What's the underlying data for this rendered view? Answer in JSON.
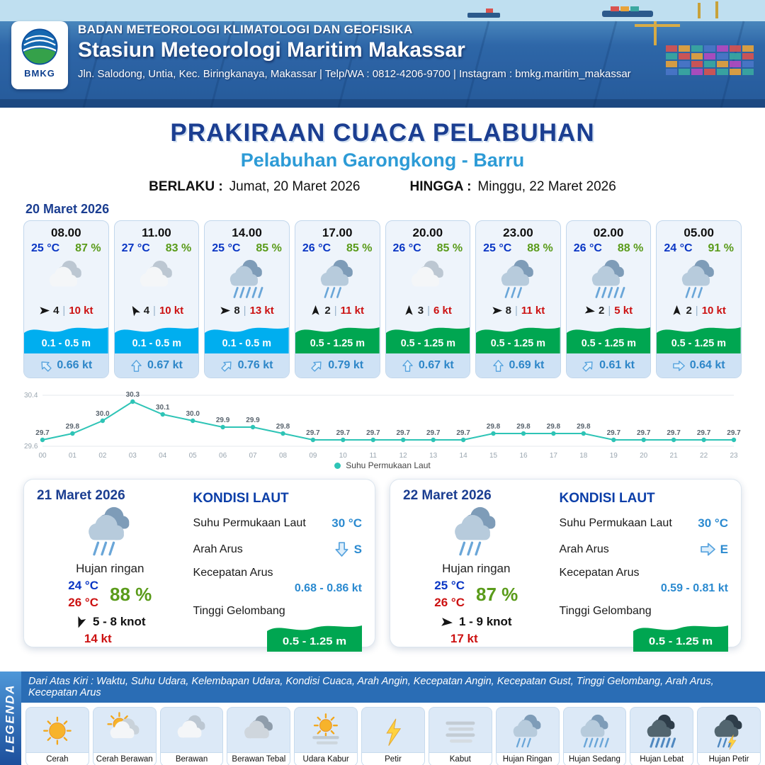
{
  "header": {
    "logo_text": "BMKG",
    "agency": "BADAN METEOROLOGI KLIMATOLOGI DAN GEOFISIKA",
    "station": "Stasiun Meteorologi Maritim Makassar",
    "address": "Jln. Salodong, Untia, Kec. Biringkanaya, Makassar | Telp/WA : 0812-4206-9700 | Instagram : bmkg.maritim_makassar"
  },
  "title": {
    "main": "PRAKIRAAN CUACA PELABUHAN",
    "subtitle": "Pelabuhan Garongkong - Barru",
    "valid_label": "BERLAKU :",
    "valid_value": "Jumat, 20 Maret 2026",
    "until_label": "HINGGA :",
    "until_value": "Minggu, 22 Maret 2026"
  },
  "hourly": {
    "date": "20 Maret 2026",
    "sep": "|",
    "cards": [
      {
        "time": "08.00",
        "temp": "25 °C",
        "rh": "87 %",
        "icon": "berawan",
        "wind_dir_deg": 90,
        "wind_speed": "4",
        "gust": "10 kt",
        "wave": "0.1 - 0.5 m",
        "wave_color": "#00aeef",
        "current_dir_deg": 315,
        "current_speed": "0.66 kt"
      },
      {
        "time": "11.00",
        "temp": "27 °C",
        "rh": "83 %",
        "icon": "berawan",
        "wind_dir_deg": 330,
        "wind_speed": "4",
        "gust": "10 kt",
        "wave": "0.1 - 0.5 m",
        "wave_color": "#00aeef",
        "current_dir_deg": 0,
        "current_speed": "0.67 kt"
      },
      {
        "time": "14.00",
        "temp": "25 °C",
        "rh": "85 %",
        "icon": "hujan-sedang",
        "wind_dir_deg": 90,
        "wind_speed": "8",
        "gust": "13 kt",
        "wave": "0.1 - 0.5 m",
        "wave_color": "#00aeef",
        "current_dir_deg": 45,
        "current_speed": "0.76 kt"
      },
      {
        "time": "17.00",
        "temp": "26 °C",
        "rh": "85 %",
        "icon": "hujan-ringan",
        "wind_dir_deg": 0,
        "wind_speed": "2",
        "gust": "11 kt",
        "wave": "0.5 - 1.25 m",
        "wave_color": "#00a651",
        "current_dir_deg": 45,
        "current_speed": "0.79 kt"
      },
      {
        "time": "20.00",
        "temp": "26 °C",
        "rh": "85 %",
        "icon": "berawan",
        "wind_dir_deg": 0,
        "wind_speed": "3",
        "gust": "6 kt",
        "wave": "0.5 - 1.25 m",
        "wave_color": "#00a651",
        "current_dir_deg": 0,
        "current_speed": "0.67 kt"
      },
      {
        "time": "23.00",
        "temp": "25 °C",
        "rh": "88 %",
        "icon": "hujan-ringan",
        "wind_dir_deg": 90,
        "wind_speed": "8",
        "gust": "11 kt",
        "wave": "0.5 - 1.25 m",
        "wave_color": "#00a651",
        "current_dir_deg": 0,
        "current_speed": "0.69 kt"
      },
      {
        "time": "02.00",
        "temp": "26 °C",
        "rh": "88 %",
        "icon": "hujan-sedang",
        "wind_dir_deg": 100,
        "wind_speed": "2",
        "gust": "5 kt",
        "wave": "0.5 - 1.25 m",
        "wave_color": "#00a651",
        "current_dir_deg": 45,
        "current_speed": "0.61 kt"
      },
      {
        "time": "05.00",
        "temp": "24 °C",
        "rh": "91 %",
        "icon": "hujan-ringan",
        "wind_dir_deg": 0,
        "wind_speed": "2",
        "gust": "10 kt",
        "wave": "0.5 - 1.25 m",
        "wave_color": "#00a651",
        "current_dir_deg": 90,
        "current_speed": "0.64 kt"
      }
    ]
  },
  "chart_data": {
    "type": "line",
    "legend": "Suhu Permukaan Laut",
    "x": [
      "00",
      "01",
      "02",
      "03",
      "04",
      "05",
      "06",
      "07",
      "08",
      "09",
      "10",
      "11",
      "12",
      "13",
      "14",
      "15",
      "16",
      "17",
      "18",
      "19",
      "20",
      "21",
      "22",
      "23"
    ],
    "values": [
      29.7,
      29.8,
      30.0,
      30.3,
      30.1,
      30.0,
      29.9,
      29.9,
      29.8,
      29.7,
      29.7,
      29.7,
      29.7,
      29.7,
      29.7,
      29.8,
      29.8,
      29.8,
      29.8,
      29.7,
      29.7,
      29.7,
      29.7,
      29.7
    ],
    "ylim": [
      29.6,
      30.4
    ],
    "yticks": [
      29.6,
      30.4
    ],
    "line_color": "#2ec4b6",
    "grid": true,
    "legend_position": "bottom"
  },
  "daily": {
    "cards": [
      {
        "date": "21 Maret 2026",
        "icon": "hujan-ringan",
        "condition": "Hujan ringan",
        "temp_min": "24 °C",
        "temp_max": "26 °C",
        "rh": "88 %",
        "wind_dir_deg": 200,
        "wind": "5 - 8 knot",
        "gust": "14 kt",
        "sea": {
          "heading": "KONDISI LAUT",
          "sst_label": "Suhu Permukaan Laut",
          "sst": "30 °C",
          "current_dir_label": "Arah Arus",
          "current_dir": "S",
          "current_dir_deg": 180,
          "current_speed_label": "Kecepatan Arus",
          "current_speed": "0.68 - 0.86 kt",
          "wave_label": "Tinggi Gelombang",
          "wave": "0.5 - 1.25 m",
          "wave_color": "#00a651"
        }
      },
      {
        "date": "22 Maret 2026",
        "icon": "hujan-ringan",
        "condition": "Hujan ringan",
        "temp_min": "25 °C",
        "temp_max": "26 °C",
        "rh": "87 %",
        "wind_dir_deg": 95,
        "wind": "1 - 9 knot",
        "gust": "17 kt",
        "sea": {
          "heading": "KONDISI LAUT",
          "sst_label": "Suhu Permukaan Laut",
          "sst": "30 °C",
          "current_dir_label": "Arah Arus",
          "current_dir": "E",
          "current_dir_deg": 90,
          "current_speed_label": "Kecepatan Arus",
          "current_speed": "0.59 - 0.81 kt",
          "wave_label": "Tinggi Gelombang",
          "wave": "0.5 - 1.25 m",
          "wave_color": "#00a651"
        }
      }
    ]
  },
  "legend": {
    "title": "LEGENDA",
    "description": "Dari Atas Kiri : Waktu, Suhu Udara, Kelembapan Udara, Kondisi Cuaca, Arah Angin, Kecepatan Angin, Kecepatan Gust, Tinggi Gelombang, Arah Arus, Kecepatan Arus",
    "items": [
      {
        "label": "Cerah",
        "icon": "cerah"
      },
      {
        "label": "Cerah Berawan",
        "icon": "cerah-berawan"
      },
      {
        "label": "Berawan",
        "icon": "berawan"
      },
      {
        "label": "Berawan Tebal",
        "icon": "berawan-tebal"
      },
      {
        "label": "Udara Kabur",
        "icon": "udara-kabur"
      },
      {
        "label": "Petir",
        "icon": "petir"
      },
      {
        "label": "Kabut",
        "icon": "kabut"
      },
      {
        "label": "Hujan Ringan",
        "icon": "hujan-ringan"
      },
      {
        "label": "Hujan Sedang",
        "icon": "hujan-sedang"
      },
      {
        "label": "Hujan Lebat",
        "icon": "hujan-lebat"
      },
      {
        "label": "Hujan Petir",
        "icon": "hujan-petir"
      }
    ]
  }
}
